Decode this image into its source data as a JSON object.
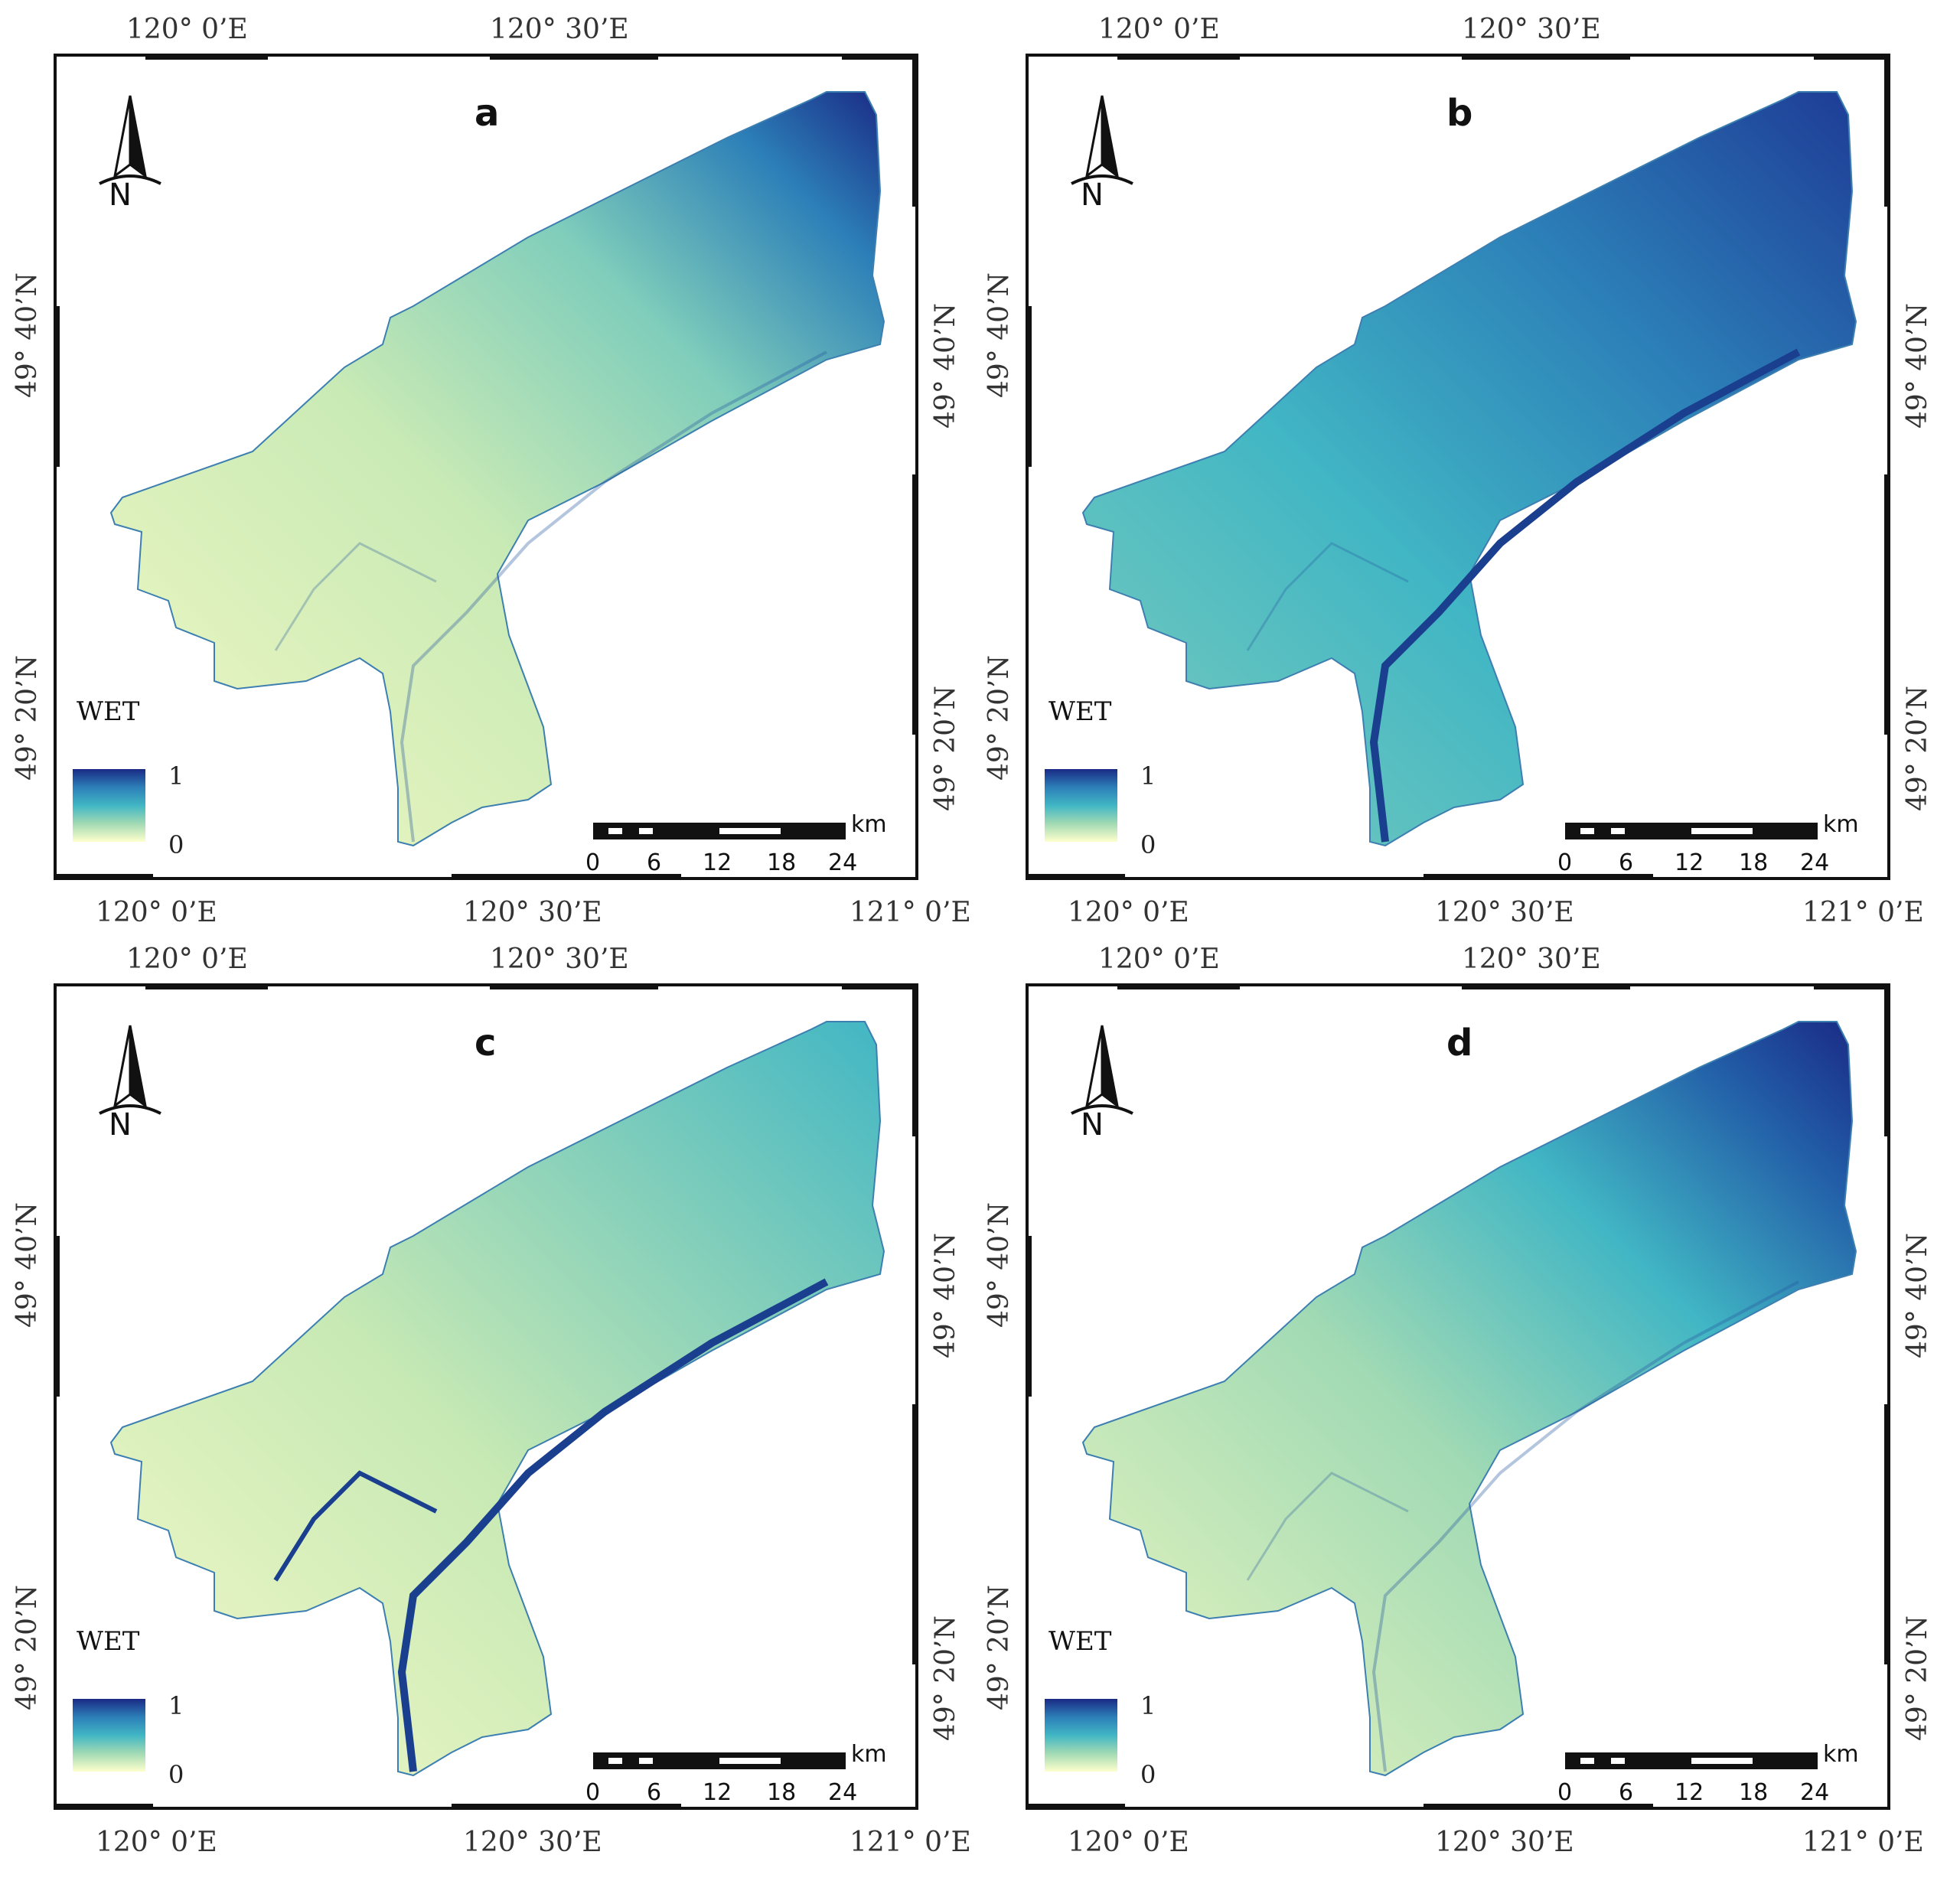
{
  "common": {
    "lon_top": [
      "120° 0’E",
      "120° 30’E"
    ],
    "lon_bottom": [
      "120° 0’E",
      "120° 30’E",
      "121° 0’E"
    ],
    "lat_left": [
      "49° 40’N",
      "49° 20’N"
    ],
    "lat_right": [
      "49° 40’N",
      "49° 20’N"
    ],
    "north_label": "N",
    "legend_title": "WET",
    "legend_max": "1",
    "legend_min": "0",
    "scale_unit": "km",
    "scale_ticks": [
      "0",
      "6",
      "12",
      "18",
      "24"
    ],
    "ramp_colors": [
      "#1a2a85",
      "#2c7fb8",
      "#41b6c4",
      "#a1dab4",
      "#ffffcc"
    ]
  },
  "panels": [
    {
      "letter": "a"
    },
    {
      "letter": "b"
    },
    {
      "letter": "c"
    },
    {
      "letter": "d"
    }
  ]
}
